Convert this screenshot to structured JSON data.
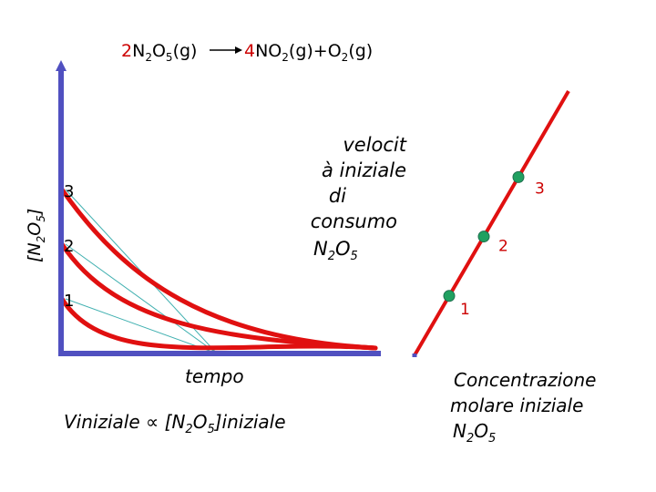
{
  "equation": {
    "coef_left": "2",
    "reactant": "N",
    "reactant_sub1": "2",
    "reactant_mid": "O",
    "reactant_sub2": "5",
    "reactant_state": "(g)",
    "coef_right": "4",
    "product1": "NO",
    "product1_sub": "2",
    "product1_state": "(g)+O",
    "product2_sub": "2",
    "product2_state": "(g)"
  },
  "left_chart": {
    "ylabel_main": "[N",
    "ylabel_sub1": "2",
    "ylabel_mid": "O",
    "ylabel_sub2": "5",
    "ylabel_end": "]",
    "xlabel": "tempo",
    "curve_labels": [
      "3",
      "2",
      "1"
    ],
    "initial_levels": [
      3,
      2,
      1
    ],
    "annotation_lines": [
      "velocit",
      "à iniziale",
      "di",
      "consumo"
    ],
    "annotation_formula": {
      "main": "N",
      "sub1": "2",
      "mid": "O",
      "sub2": "5"
    },
    "formula": {
      "prefix": "Viniziale ",
      "symbol": "∝",
      "main": " [N",
      "sub1": "2",
      "mid": "O",
      "sub2": "5",
      "end": "]iniziale"
    },
    "colors": {
      "curve": "#e01010",
      "tangent": "#40b0b0",
      "axis": "#5050c0"
    }
  },
  "chart_data": {
    "type": "line",
    "series": [
      {
        "name": "1",
        "x": [
          1
        ],
        "y": [
          1
        ]
      },
      {
        "name": "2",
        "x": [
          2
        ],
        "y": [
          2
        ]
      },
      {
        "name": "3",
        "x": [
          3
        ],
        "y": [
          3
        ]
      }
    ],
    "point_labels": [
      "1",
      "2",
      "3"
    ],
    "xlabel_lines": [
      "Concentrazione",
      "molare iniziale"
    ],
    "xlabel_formula": {
      "main": "N",
      "sub1": "2",
      "mid": "O",
      "sub2": "5"
    },
    "colors": {
      "line": "#e01010",
      "point": "#20a060",
      "axis": "#5050c0"
    }
  }
}
